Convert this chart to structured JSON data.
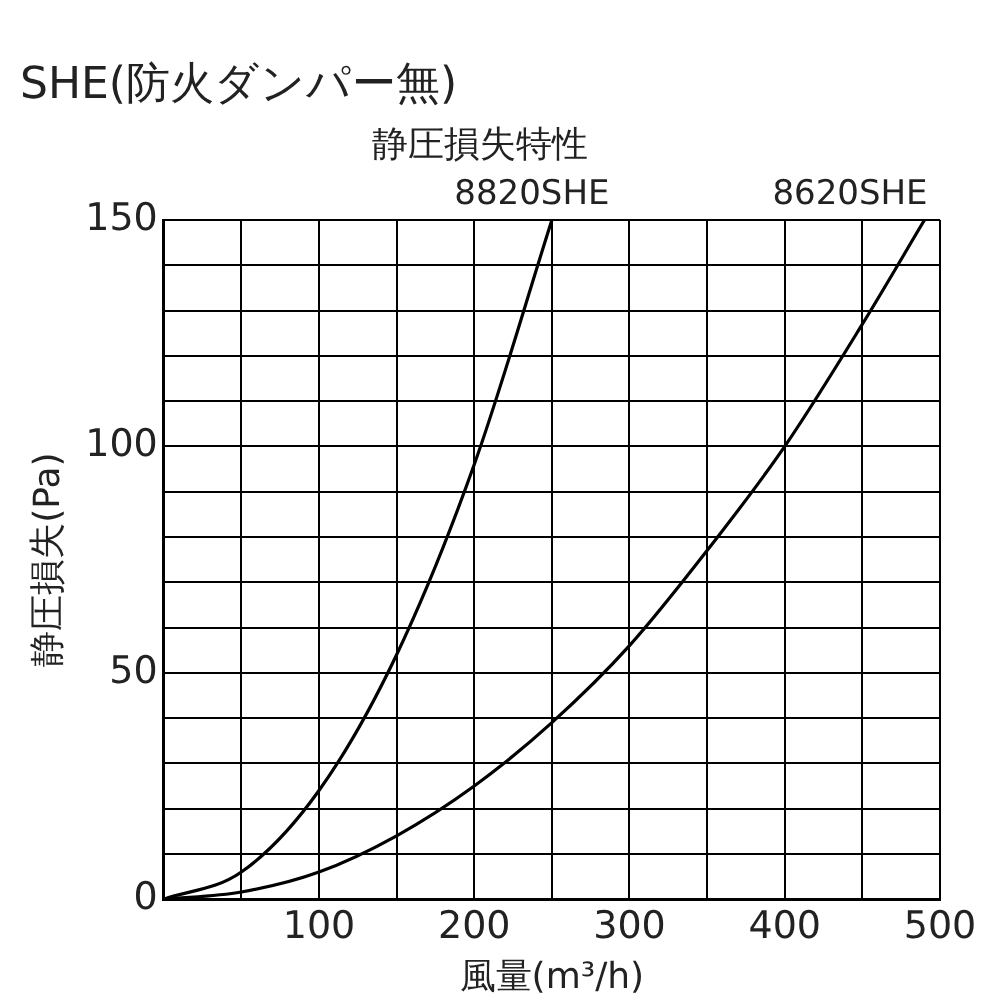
{
  "chart_data": {
    "type": "line",
    "title": "SHE(防火ダンパー無)",
    "subtitle": "静圧損失特性",
    "xlabel": "風量(m³/h)",
    "ylabel": "静圧損失(Pa)",
    "series": [
      {
        "name": "8820SHE",
        "color": "#000000",
        "x": [
          0,
          50,
          100,
          150,
          200,
          250
        ],
        "values": [
          0,
          6,
          24,
          54,
          96,
          150
        ]
      },
      {
        "name": "8620SHE",
        "color": "#000000",
        "x": [
          0,
          50,
          100,
          150,
          200,
          250,
          300,
          350,
          400,
          450,
          490
        ],
        "values": [
          0,
          1.6,
          6,
          14,
          25,
          39,
          56,
          77,
          100,
          127,
          150
        ]
      }
    ],
    "xlim": [
      0,
      500
    ],
    "ylim": [
      0,
      150
    ],
    "xticks": [
      {
        "value": 0,
        "label": null
      },
      {
        "value": 50,
        "label": null
      },
      100,
      {
        "value": 150,
        "label": null
      },
      200,
      {
        "value": 250,
        "label": null
      },
      300,
      {
        "value": 350,
        "label": null
      },
      400,
      {
        "value": 450,
        "label": null
      },
      500
    ],
    "yticks": [
      0,
      {
        "value": 10,
        "label": null
      },
      {
        "value": 20,
        "label": null
      },
      {
        "value": 30,
        "label": null
      },
      {
        "value": 40,
        "label": null
      },
      50,
      {
        "value": 60,
        "label": null
      },
      {
        "value": 70,
        "label": null
      },
      {
        "value": 80,
        "label": null
      },
      {
        "value": 90,
        "label": null
      },
      100,
      {
        "value": 110,
        "label": null
      },
      {
        "value": 120,
        "label": null
      },
      {
        "value": 130,
        "label": null
      },
      {
        "value": 140,
        "label": null
      },
      150
    ],
    "grid": true,
    "legend": false,
    "marker": "none",
    "line_style": "solid"
  }
}
